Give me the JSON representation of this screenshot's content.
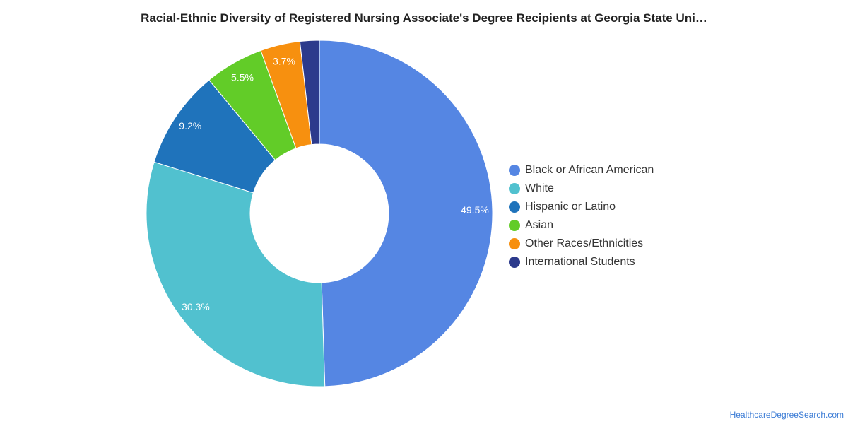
{
  "title": "Racial-Ethnic Diversity of Registered Nursing Associate's Degree Recipients at Georgia State Uni…",
  "source": "HealthcareDegreeSearch.com",
  "chart_data": {
    "type": "pie",
    "donut": true,
    "title": "Racial-Ethnic Diversity of Registered Nursing Associate's Degree Recipients at Georgia State Uni…",
    "legend_position": "right",
    "categories": [
      "Black or African American",
      "White",
      "Hispanic or Latino",
      "Asian",
      "Other Races/Ethnicities",
      "International Students"
    ],
    "values": [
      49.5,
      30.3,
      9.2,
      5.5,
      3.7,
      1.8
    ],
    "labels": [
      "49.5%",
      "30.3%",
      "9.2%",
      "5.5%",
      "3.7%",
      ""
    ],
    "colors": [
      "#5586e3",
      "#51c1cf",
      "#1f73bb",
      "#62cc28",
      "#f7900f",
      "#2c3a8c"
    ]
  }
}
